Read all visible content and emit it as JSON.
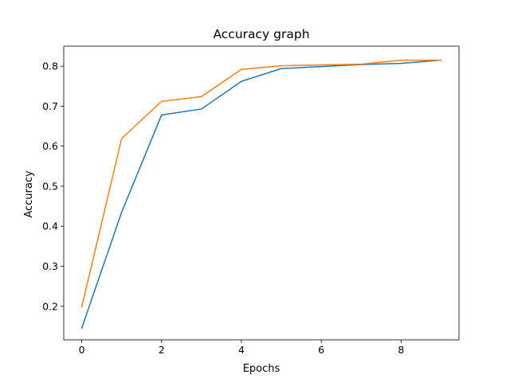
{
  "chart_data": {
    "type": "line",
    "title": "Accuracy graph",
    "xlabel": "Epochs",
    "ylabel": "Accuracy",
    "x": [
      0,
      1,
      2,
      3,
      4,
      5,
      6,
      7,
      8,
      9
    ],
    "xlim": [
      -0.45,
      9.45
    ],
    "ylim": [
      0.116,
      0.85
    ],
    "xticks": [
      0,
      2,
      4,
      6,
      8
    ],
    "xtick_labels": [
      "0",
      "2",
      "4",
      "6",
      "8"
    ],
    "yticks": [
      0.2,
      0.3,
      0.4,
      0.5,
      0.6,
      0.7,
      0.8
    ],
    "ytick_labels": [
      "0.2",
      "0.3",
      "0.4",
      "0.5",
      "0.6",
      "0.7",
      "0.8"
    ],
    "grid": false,
    "series": [
      {
        "color": "#1f77b4",
        "values": [
          0.145,
          0.435,
          0.678,
          0.693,
          0.762,
          0.794,
          0.799,
          0.804,
          0.807,
          0.815
        ]
      },
      {
        "color": "#ff7f0e",
        "values": [
          0.198,
          0.619,
          0.712,
          0.724,
          0.792,
          0.801,
          0.803,
          0.805,
          0.815,
          0.815
        ]
      }
    ]
  }
}
